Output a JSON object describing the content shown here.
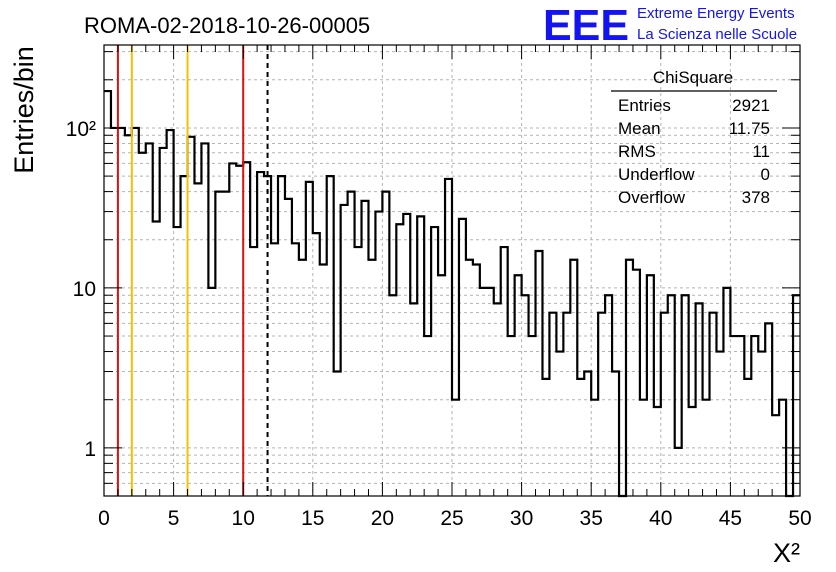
{
  "title": "ROMA-02-2018-10-26-00005",
  "logo": {
    "mark": "EEE",
    "line1": "Extreme Energy Events",
    "line2": "La Scienza nelle Scuole",
    "color": "#1414f0"
  },
  "stats": {
    "name": "ChiSquare",
    "rows": [
      {
        "label": "Entries",
        "value": "2921"
      },
      {
        "label": "Mean",
        "value": "11.75"
      },
      {
        "label": "RMS",
        "value": "11"
      },
      {
        "label": "Underflow",
        "value": "0"
      },
      {
        "label": "Overflow",
        "value": "378"
      }
    ]
  },
  "chart_data": {
    "type": "histogram",
    "xlabel": "Χ²",
    "ylabel": "Entries/bin",
    "xlim": [
      0,
      50
    ],
    "ylim": [
      0.5,
      330
    ],
    "yscale": "log",
    "grid": true,
    "bin_width": 0.5,
    "x_ticks": [
      0,
      5,
      10,
      15,
      20,
      25,
      30,
      35,
      40,
      45,
      50
    ],
    "y_ticks": [
      {
        "value": 1,
        "label": "1"
      },
      {
        "value": 10,
        "label": "10"
      },
      {
        "value": 100,
        "label": "10²"
      }
    ],
    "values": [
      170,
      100,
      100,
      90,
      100,
      70,
      80,
      26,
      75,
      97,
      24,
      50,
      88,
      45,
      80,
      10,
      40,
      40,
      60,
      58,
      61,
      18,
      53,
      50,
      19,
      50,
      36,
      19,
      15,
      46,
      22,
      14,
      50,
      3,
      33,
      40,
      18,
      35,
      15,
      30,
      40,
      9,
      25,
      29,
      8,
      28,
      5,
      24,
      12,
      48,
      2,
      27,
      15,
      14,
      10,
      10,
      8,
      18,
      5,
      12,
      9,
      5,
      17,
      2.7,
      7,
      4,
      7,
      15,
      2.7,
      3,
      2,
      7,
      9,
      3,
      0.4,
      15,
      13,
      2,
      12,
      1.8,
      7,
      9,
      1,
      9,
      1.8,
      8,
      2,
      7,
      4,
      10,
      5,
      5,
      2.7,
      5,
      4,
      6,
      1.6,
      2,
      0.4,
      9
    ],
    "vertical_lines": [
      {
        "x": 1,
        "color": "#dd1111",
        "style": "solid"
      },
      {
        "x": 2,
        "color": "#f2c200",
        "style": "solid"
      },
      {
        "x": 6,
        "color": "#f2c200",
        "style": "solid"
      },
      {
        "x": 10,
        "color": "#dd1111",
        "style": "solid"
      },
      {
        "x": 11.75,
        "color": "#000000",
        "style": "dashed"
      }
    ]
  }
}
